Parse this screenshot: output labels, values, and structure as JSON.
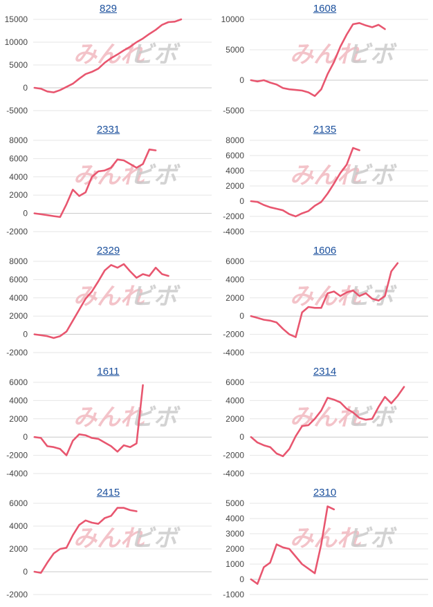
{
  "colors": {
    "line": "#e8566f",
    "grid": "#e6e6e6",
    "zero": "#c8c8c8",
    "title": "#1a4f9c"
  },
  "watermark": {
    "part1": "みんれ",
    "part2": "ビボ"
  },
  "chart_data": [
    {
      "type": "line",
      "title": "829",
      "ylim": [
        -5000,
        15000
      ],
      "yticks": [
        15000,
        10000,
        5000,
        0,
        -5000
      ],
      "max_points": 28,
      "values": [
        0,
        -200,
        -800,
        -1000,
        -500,
        200,
        900,
        2000,
        3000,
        3500,
        4200,
        5500,
        6500,
        7300,
        8200,
        9000,
        10000,
        10800,
        11800,
        12700,
        13800,
        14400,
        14500,
        15000
      ]
    },
    {
      "type": "line",
      "title": "1608",
      "ylim": [
        -5000,
        10000
      ],
      "yticks": [
        10000,
        5000,
        0,
        -5000
      ],
      "max_points": 28,
      "values": [
        0,
        -200,
        0,
        -400,
        -700,
        -1300,
        -1500,
        -1600,
        -1700,
        -2000,
        -2600,
        -1500,
        1000,
        3000,
        5500,
        7500,
        9200,
        9400,
        9000,
        8700,
        9100,
        8400
      ]
    },
    {
      "type": "line",
      "title": "2331",
      "ylim": [
        -2000,
        8000
      ],
      "yticks": [
        8000,
        6000,
        4000,
        2000,
        0,
        -2000
      ],
      "max_points": 28,
      "values": [
        0,
        -100,
        -200,
        -300,
        -400,
        1000,
        2600,
        1900,
        2300,
        4000,
        4600,
        4700,
        5000,
        5900,
        5800,
        5400,
        5000,
        5400,
        7000,
        6900
      ]
    },
    {
      "type": "line",
      "title": "2135",
      "ylim": [
        -4000,
        8000
      ],
      "yticks": [
        8000,
        6000,
        4000,
        2000,
        0,
        -2000,
        -4000
      ],
      "max_points": 28,
      "values": [
        0,
        -100,
        -500,
        -800,
        -1000,
        -1200,
        -1700,
        -2000,
        -1600,
        -1300,
        -600,
        -100,
        1000,
        2300,
        3700,
        4800,
        7000,
        6700
      ]
    },
    {
      "type": "line",
      "title": "2329",
      "ylim": [
        -2000,
        8000
      ],
      "yticks": [
        8000,
        6000,
        4000,
        2000,
        0,
        -2000
      ],
      "max_points": 28,
      "values": [
        0,
        -100,
        -200,
        -400,
        -200,
        300,
        1500,
        2700,
        3900,
        4700,
        5800,
        7000,
        7600,
        7300,
        7700,
        6900,
        6200,
        6600,
        6400,
        7300,
        6600,
        6400
      ]
    },
    {
      "type": "line",
      "title": "1606",
      "ylim": [
        -4000,
        6000
      ],
      "yticks": [
        6000,
        4000,
        2000,
        0,
        -2000,
        -4000
      ],
      "max_points": 28,
      "values": [
        0,
        -200,
        -400,
        -500,
        -700,
        -1400,
        -2000,
        -2300,
        400,
        1000,
        900,
        900,
        2500,
        2700,
        2200,
        2600,
        2800,
        2200,
        2500,
        1900,
        1700,
        2200,
        4900,
        5800
      ]
    },
    {
      "type": "line",
      "title": "1611",
      "ylim": [
        -4000,
        6000
      ],
      "yticks": [
        6000,
        4000,
        2000,
        0,
        -2000,
        -4000
      ],
      "max_points": 28,
      "values": [
        0,
        -100,
        -1000,
        -1100,
        -1300,
        -2000,
        -400,
        300,
        200,
        -100,
        -200,
        -600,
        -1000,
        -1600,
        -900,
        -1100,
        -700,
        5700
      ]
    },
    {
      "type": "line",
      "title": "2314",
      "ylim": [
        -4000,
        6000
      ],
      "yticks": [
        6000,
        4000,
        2000,
        0,
        -2000,
        -4000
      ],
      "max_points": 28,
      "values": [
        0,
        -600,
        -900,
        -1100,
        -1800,
        -2100,
        -1300,
        100,
        1200,
        1300,
        2000,
        2900,
        4300,
        4100,
        3800,
        3100,
        2700,
        2100,
        1900,
        2000,
        3300,
        4400,
        3700,
        4500,
        5500
      ]
    },
    {
      "type": "line",
      "title": "2415",
      "ylim": [
        -2000,
        6000
      ],
      "yticks": [
        6000,
        4000,
        2000,
        0,
        -2000
      ],
      "max_points": 28,
      "values": [
        0,
        -100,
        800,
        1600,
        2000,
        2100,
        3200,
        4100,
        4500,
        4300,
        4200,
        4700,
        4900,
        5600,
        5600,
        5400,
        5300
      ]
    },
    {
      "type": "line",
      "title": "2310",
      "ylim": [
        -1000,
        5000
      ],
      "yticks": [
        5000,
        4000,
        3000,
        2000,
        1000,
        0,
        -1000
      ],
      "max_points": 28,
      "values": [
        0,
        -300,
        800,
        1100,
        2300,
        2100,
        2000,
        1500,
        1000,
        700,
        400,
        2300,
        4800,
        4600
      ]
    }
  ]
}
